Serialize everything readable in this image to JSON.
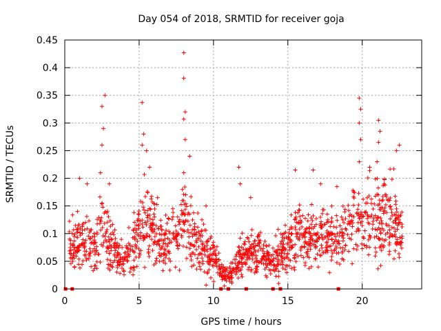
{
  "chart_data": {
    "type": "scatter",
    "title": "Day 054 of 2018, SRMTID for receiver goja",
    "xlabel": "GPS time / hours",
    "ylabel": "SRMTID / TECUs",
    "xlim": [
      0,
      24
    ],
    "ylim": [
      0,
      0.45
    ],
    "x_ticks": [
      0,
      5,
      10,
      15,
      20
    ],
    "x_tick_labels": [
      "0",
      "5",
      "10",
      "15",
      "20"
    ],
    "y_ticks": [
      0,
      0.05,
      0.1,
      0.15,
      0.2,
      0.25,
      0.3,
      0.35,
      0.4,
      0.45
    ],
    "y_tick_labels": [
      "0",
      "0.05",
      "0.1",
      "0.15",
      "0.2",
      "0.25",
      "0.3",
      "0.35",
      "0.4",
      "0.45"
    ],
    "grid": true,
    "marker": "plus",
    "color": "#ff0000",
    "envelope": {
      "description": "approximate typical level of the dense point cloud",
      "x": [
        0.3,
        1,
        2,
        2.6,
        3,
        4,
        5.1,
        5.5,
        6.5,
        7.5,
        8,
        9,
        10,
        10.8,
        11.3,
        12,
        13,
        14,
        15,
        15.8,
        16.5,
        17.5,
        18.5,
        19.4,
        20,
        21,
        22,
        22.7
      ],
      "y": [
        0.08,
        0.09,
        0.07,
        0.12,
        0.08,
        0.05,
        0.11,
        0.13,
        0.08,
        0.09,
        0.12,
        0.08,
        0.06,
        0.02,
        0.03,
        0.06,
        0.07,
        0.05,
        0.08,
        0.1,
        0.09,
        0.1,
        0.09,
        0.12,
        0.12,
        0.12,
        0.13,
        0.09
      ]
    },
    "peaks": [
      {
        "x": 2.5,
        "y": 0.33
      },
      {
        "x": 2.7,
        "y": 0.35
      },
      {
        "x": 2.6,
        "y": 0.29
      },
      {
        "x": 2.5,
        "y": 0.26
      },
      {
        "x": 2.4,
        "y": 0.21
      },
      {
        "x": 3.0,
        "y": 0.19
      },
      {
        "x": 5.2,
        "y": 0.337
      },
      {
        "x": 5.3,
        "y": 0.28
      },
      {
        "x": 5.2,
        "y": 0.26
      },
      {
        "x": 5.5,
        "y": 0.25
      },
      {
        "x": 5.7,
        "y": 0.22
      },
      {
        "x": 8.0,
        "y": 0.427
      },
      {
        "x": 8.0,
        "y": 0.381
      },
      {
        "x": 8.1,
        "y": 0.32
      },
      {
        "x": 8.0,
        "y": 0.307
      },
      {
        "x": 8.1,
        "y": 0.27
      },
      {
        "x": 8.4,
        "y": 0.24
      },
      {
        "x": 8.0,
        "y": 0.21
      },
      {
        "x": 11.7,
        "y": 0.22
      },
      {
        "x": 11.8,
        "y": 0.19
      },
      {
        "x": 12.5,
        "y": 0.165
      },
      {
        "x": 15.5,
        "y": 0.215
      },
      {
        "x": 16.7,
        "y": 0.215
      },
      {
        "x": 19.8,
        "y": 0.345
      },
      {
        "x": 19.9,
        "y": 0.325
      },
      {
        "x": 19.8,
        "y": 0.3
      },
      {
        "x": 19.9,
        "y": 0.27
      },
      {
        "x": 19.8,
        "y": 0.23
      },
      {
        "x": 21.1,
        "y": 0.305
      },
      {
        "x": 21.2,
        "y": 0.285
      },
      {
        "x": 21.1,
        "y": 0.265
      },
      {
        "x": 21.0,
        "y": 0.23
      },
      {
        "x": 22.5,
        "y": 0.26
      },
      {
        "x": 22.3,
        "y": 0.25
      },
      {
        "x": 20.5,
        "y": 0.22
      },
      {
        "x": 1.0,
        "y": 0.2
      },
      {
        "x": 1.5,
        "y": 0.19
      },
      {
        "x": 18.3,
        "y": 0.185
      },
      {
        "x": 17.2,
        "y": 0.19
      },
      {
        "x": 9.5,
        "y": 0.15
      }
    ],
    "zero_values_x": [
      0.05,
      0.5,
      10.5,
      11.0,
      12.2,
      14.0,
      14.5,
      18.4
    ]
  }
}
